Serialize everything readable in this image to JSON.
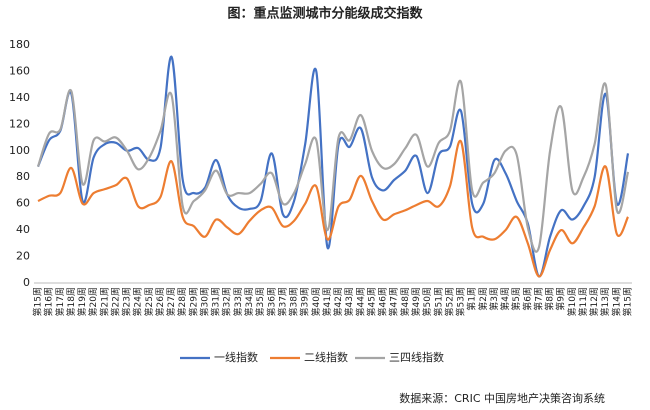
{
  "chart_data": {
    "type": "line",
    "title": "图：重点监测城市分能级成交指数",
    "source": "数据来源：CRIC 中国房地产决策咨询系统",
    "categories": [
      "第15周",
      "第16周",
      "第17周",
      "第18周",
      "第19周",
      "第20周",
      "第21周",
      "第22周",
      "第23周",
      "第24周",
      "第25周",
      "第26周",
      "第27周",
      "第28周",
      "第29周",
      "第30周",
      "第31周",
      "第32周",
      "第33周",
      "第34周",
      "第35周",
      "第36周",
      "第37周",
      "第38周",
      "第39周",
      "第40周",
      "第41周",
      "第42周",
      "第43周",
      "第44周",
      "第45周",
      "第46周",
      "第47周",
      "第48周",
      "第49周",
      "第50周",
      "第51周",
      "第52周",
      "第53周",
      "第1周",
      "第2周",
      "第3周",
      "第4周",
      "第5周",
      "第6周",
      "第7周",
      "第8周",
      "第9周",
      "第10周",
      "第11周",
      "第12周",
      "第13周",
      "第14周",
      "第15周"
    ],
    "series": [
      {
        "name": "一线指数",
        "color": "#4472c4",
        "values": [
          88,
          108,
          115,
          143,
          62,
          95,
          105,
          106,
          100,
          102,
          93,
          102,
          171,
          78,
          68,
          72,
          93,
          67,
          57,
          56,
          62,
          98,
          52,
          62,
          105,
          160,
          27,
          105,
          103,
          117,
          80,
          70,
          78,
          85,
          96,
          68,
          97,
          103,
          130,
          60,
          60,
          93,
          83,
          62,
          45,
          5,
          35,
          55,
          48,
          58,
          80,
          143,
          60,
          98
        ]
      },
      {
        "name": "二线指数",
        "color": "#ed7d31",
        "values": [
          62,
          66,
          68,
          87,
          60,
          68,
          71,
          74,
          79,
          58,
          59,
          65,
          92,
          50,
          43,
          35,
          48,
          42,
          37,
          47,
          55,
          57,
          43,
          47,
          60,
          73,
          33,
          58,
          63,
          81,
          62,
          48,
          52,
          55,
          59,
          62,
          58,
          73,
          107,
          42,
          35,
          33,
          40,
          50,
          30,
          5,
          25,
          40,
          30,
          42,
          58,
          88,
          37,
          50
        ]
      },
      {
        "name": "三四线指数",
        "color": "#a5a5a5",
        "values": [
          88,
          113,
          116,
          145,
          75,
          108,
          107,
          110,
          100,
          86,
          95,
          115,
          142,
          58,
          62,
          70,
          85,
          67,
          68,
          68,
          75,
          83,
          60,
          68,
          90,
          108,
          40,
          110,
          108,
          127,
          100,
          87,
          90,
          102,
          112,
          88,
          106,
          115,
          152,
          70,
          76,
          83,
          100,
          97,
          42,
          27,
          100,
          133,
          70,
          80,
          105,
          150,
          55,
          84
        ]
      }
    ],
    "ylim": [
      0,
      180
    ],
    "yticks": [
      0,
      20,
      40,
      60,
      80,
      100,
      120,
      140,
      160,
      180
    ],
    "grid": false,
    "legend": "bottom"
  }
}
